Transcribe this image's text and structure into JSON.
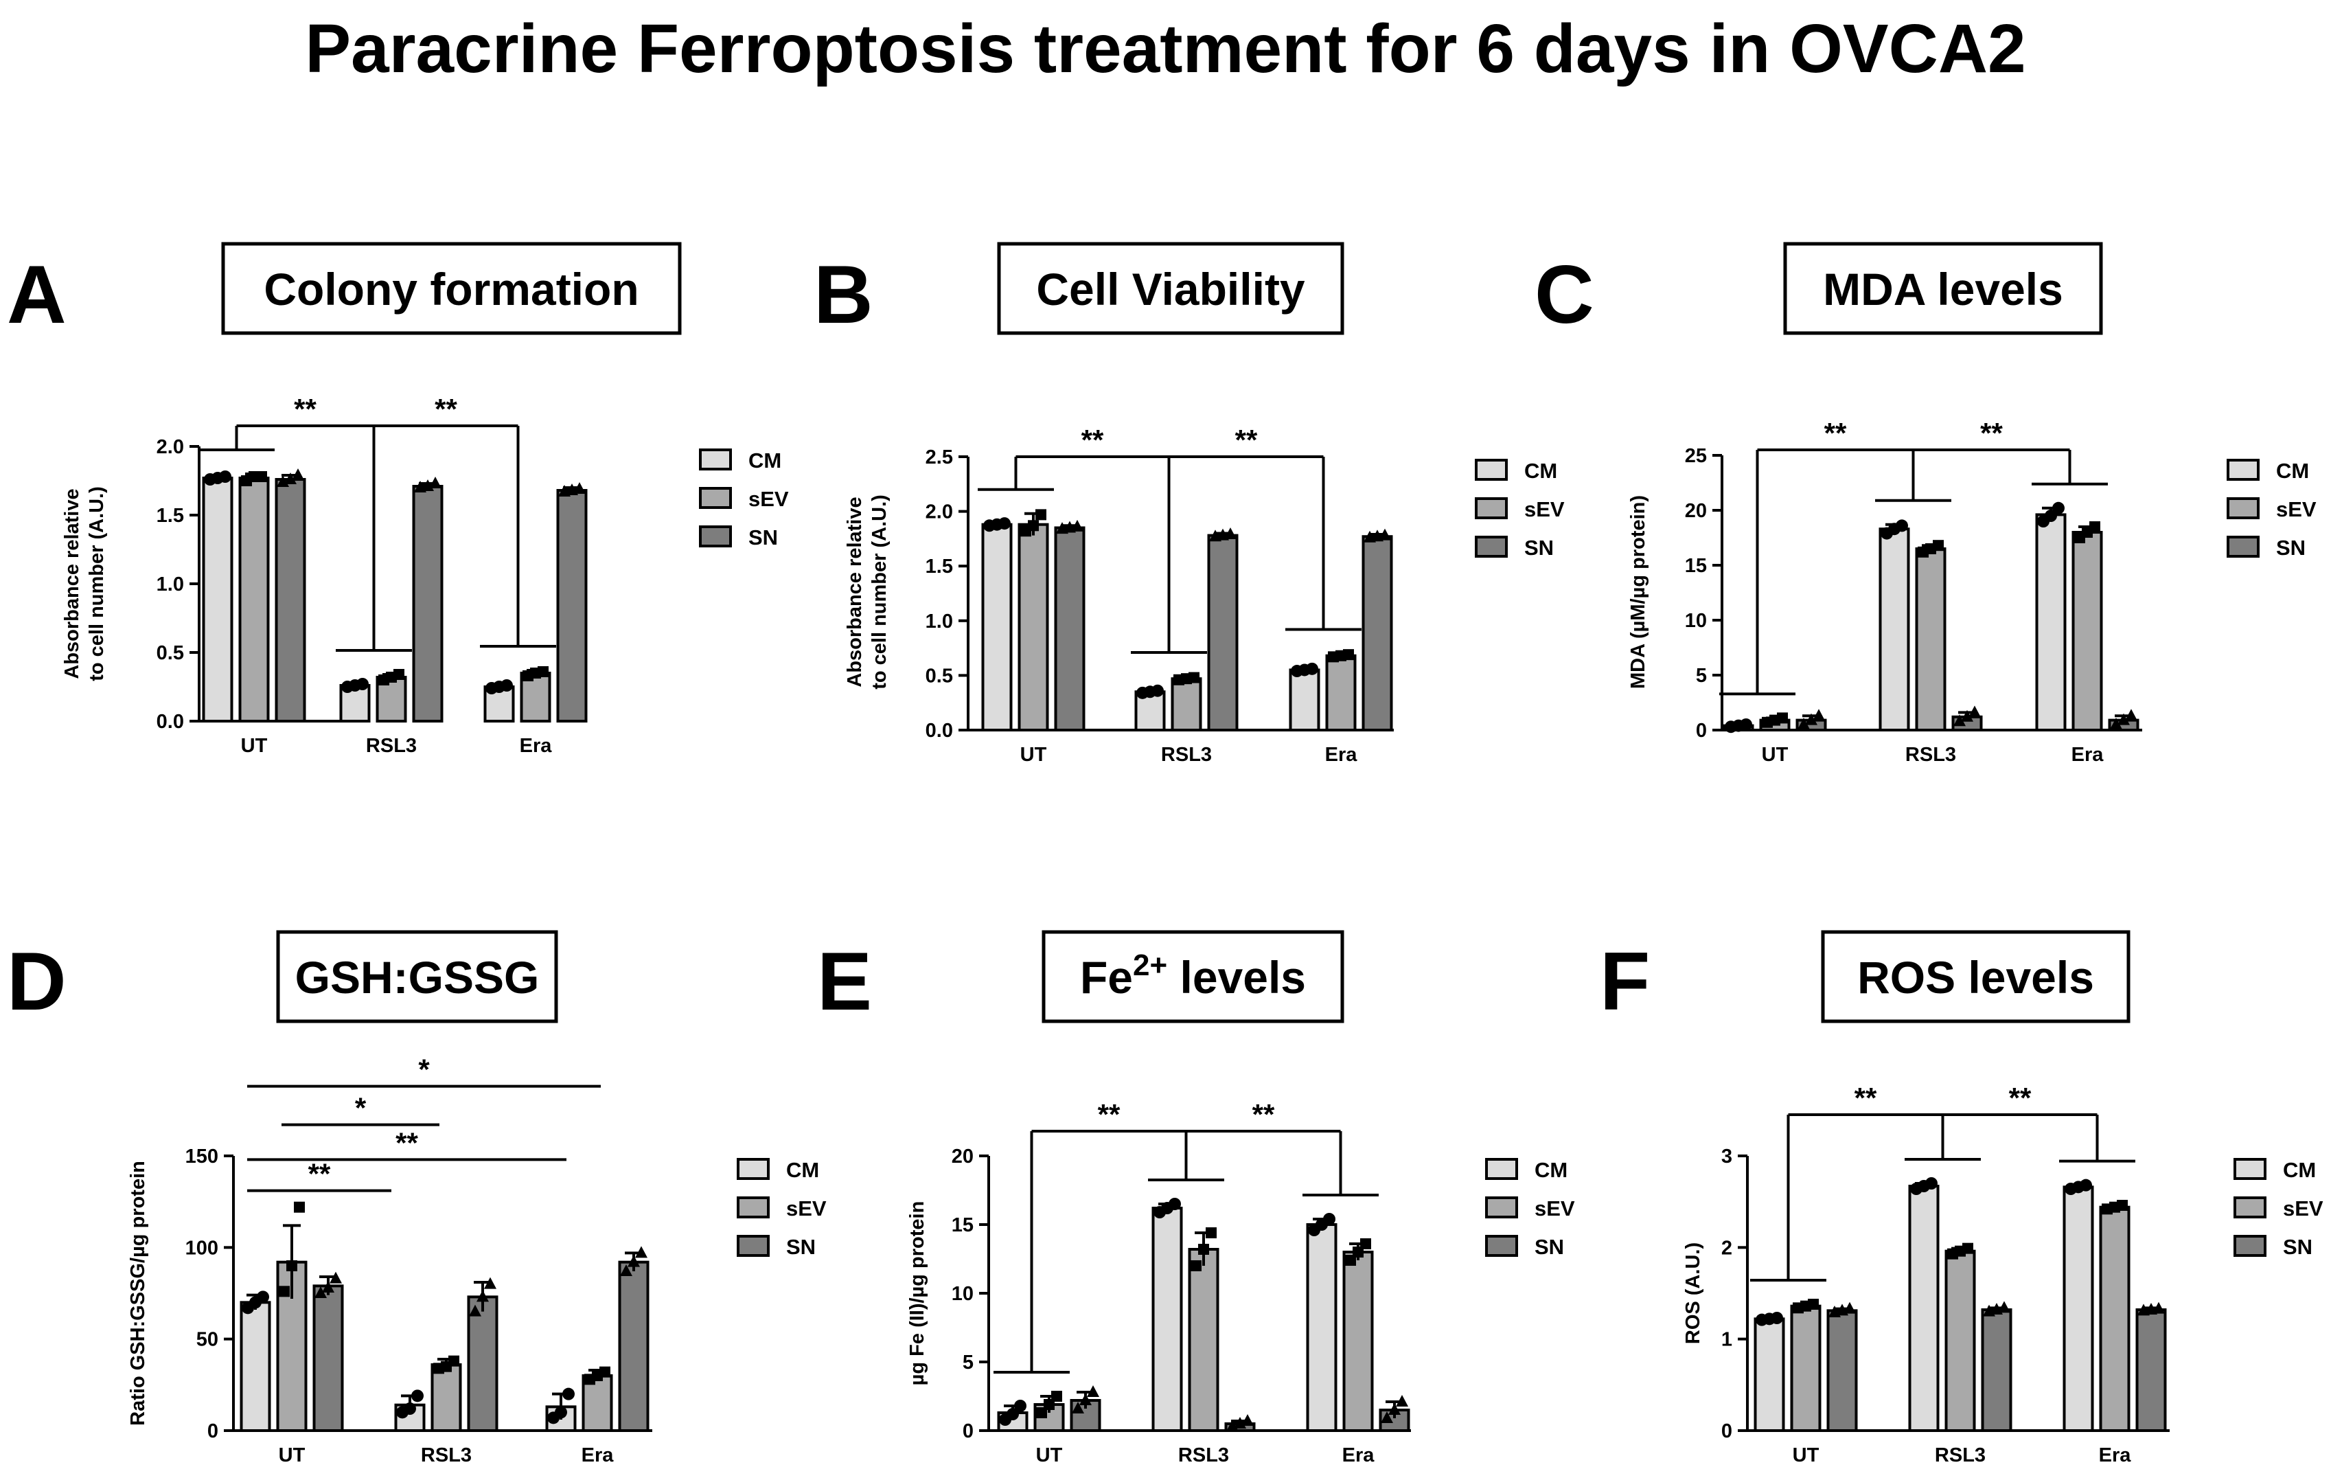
{
  "figure_title": "Paracrine Ferroptosis treatment for 6 days in OVCA2",
  "legend_labels": [
    "CM",
    "sEV",
    "SN"
  ],
  "colors": {
    "CM": "#dcdcdc",
    "sEV": "#a9a9a9",
    "SN": "#7d7d7d",
    "ink": "#000000"
  },
  "chart_data": [
    {
      "panel": "A",
      "type": "bar",
      "title": "Colony formation",
      "ylabel": "Absorbance relative\nto cell number (A.U.)",
      "categories": [
        "UT",
        "RSL3",
        "Era"
      ],
      "ylim": [
        0,
        2.0
      ],
      "yticks": [
        0.0,
        0.5,
        1.0,
        1.5,
        2.0
      ],
      "tick_decimals": 1,
      "series": [
        {
          "name": "CM",
          "values": [
            1.77,
            0.26,
            0.25
          ],
          "errors": [
            0.02,
            0.02,
            0.02
          ],
          "points": [
            [
              1.76,
              1.77,
              1.78
            ],
            [
              0.25,
              0.26,
              0.27
            ],
            [
              0.24,
              0.25,
              0.26
            ]
          ]
        },
        {
          "name": "sEV",
          "values": [
            1.77,
            0.32,
            0.35
          ],
          "errors": [
            0.03,
            0.02,
            0.02
          ],
          "points": [
            [
              1.75,
              1.78,
              1.78
            ],
            [
              0.3,
              0.32,
              0.34
            ],
            [
              0.33,
              0.35,
              0.36
            ]
          ]
        },
        {
          "name": "SN",
          "values": [
            1.76,
            1.71,
            1.68
          ],
          "errors": [
            0.03,
            0.02,
            0.02
          ],
          "points": [
            [
              1.74,
              1.76,
              1.79
            ],
            [
              1.7,
              1.71,
              1.73
            ],
            [
              1.67,
              1.68,
              1.69
            ]
          ]
        }
      ],
      "annotations": [
        {
          "label": "**",
          "kind": "group_compare",
          "bar_y": 2.15
        },
        {
          "label": "**",
          "kind": "group_compare",
          "bar_y": 2.15
        }
      ]
    },
    {
      "panel": "B",
      "type": "bar",
      "title": "Cell Viability",
      "ylabel": "Absorbance relative\nto cell number (A.U.)",
      "categories": [
        "UT",
        "RSL3",
        "Era"
      ],
      "ylim": [
        0,
        2.5
      ],
      "yticks": [
        0.0,
        0.5,
        1.0,
        1.5,
        2.0,
        2.5
      ],
      "tick_decimals": 1,
      "series": [
        {
          "name": "CM",
          "values": [
            1.88,
            0.35,
            0.55
          ],
          "errors": [
            0.02,
            0.02,
            0.02
          ],
          "points": [
            [
              1.87,
              1.88,
              1.89
            ],
            [
              0.34,
              0.35,
              0.36
            ],
            [
              0.54,
              0.55,
              0.56
            ]
          ]
        },
        {
          "name": "sEV",
          "values": [
            1.88,
            0.47,
            0.68
          ],
          "errors": [
            0.1,
            0.02,
            0.02
          ],
          "points": [
            [
              1.82,
              1.87,
              1.97
            ],
            [
              0.46,
              0.47,
              0.48
            ],
            [
              0.67,
              0.68,
              0.69
            ]
          ]
        },
        {
          "name": "SN",
          "values": [
            1.85,
            1.78,
            1.77
          ],
          "errors": [
            0.02,
            0.02,
            0.02
          ],
          "points": [
            [
              1.84,
              1.85,
              1.86
            ],
            [
              1.77,
              1.78,
              1.79
            ],
            [
              1.76,
              1.77,
              1.78
            ]
          ]
        }
      ],
      "annotations": [
        {
          "label": "**",
          "kind": "group_compare",
          "bar_y": 2.5
        },
        {
          "label": "**",
          "kind": "group_compare",
          "bar_y": 2.5
        }
      ]
    },
    {
      "panel": "C",
      "type": "bar",
      "title": "MDA levels",
      "ylabel": "MDA (µM/µg protein)",
      "categories": [
        "UT",
        "RSL3",
        "Era"
      ],
      "ylim": [
        0,
        25
      ],
      "yticks": [
        0,
        5,
        10,
        15,
        20,
        25
      ],
      "tick_decimals": 0,
      "series": [
        {
          "name": "CM",
          "values": [
            0.4,
            18.3,
            19.6
          ],
          "errors": [
            0.1,
            0.4,
            0.6
          ],
          "points": [
            [
              0.3,
              0.4,
              0.5
            ],
            [
              17.9,
              18.3,
              18.6
            ],
            [
              19.0,
              19.5,
              20.2
            ]
          ]
        },
        {
          "name": "sEV",
          "values": [
            0.9,
            16.5,
            18.0
          ],
          "errors": [
            0.2,
            0.3,
            0.5
          ],
          "points": [
            [
              0.7,
              0.9,
              1.1
            ],
            [
              16.2,
              16.5,
              16.8
            ],
            [
              17.5,
              18.0,
              18.5
            ]
          ]
        },
        {
          "name": "SN",
          "values": [
            0.9,
            1.2,
            0.9
          ],
          "errors": [
            0.4,
            0.4,
            0.4
          ],
          "points": [
            [
              0.5,
              0.9,
              1.3
            ],
            [
              0.8,
              1.2,
              1.6
            ],
            [
              0.5,
              0.9,
              1.3
            ]
          ]
        }
      ],
      "annotations": [
        {
          "label": "**",
          "kind": "group_compare",
          "bar_y": 25.5
        },
        {
          "label": "**",
          "kind": "group_compare",
          "bar_y": 25.5
        }
      ]
    },
    {
      "panel": "D",
      "type": "bar",
      "title": "GSH:GSSG",
      "ylabel": "Ratio GSH:GSSG/µg protein",
      "categories": [
        "UT",
        "RSL3",
        "Era"
      ],
      "ylim": [
        0,
        150
      ],
      "yticks": [
        0,
        50,
        100,
        150
      ],
      "tick_decimals": 0,
      "series": [
        {
          "name": "CM",
          "values": [
            70,
            14,
            13
          ],
          "errors": [
            4,
            5,
            7
          ],
          "points": [
            [
              67,
              70,
              73
            ],
            [
              10,
              12,
              19
            ],
            [
              7,
              10,
              20
            ]
          ]
        },
        {
          "name": "sEV",
          "values": [
            92,
            36,
            30
          ],
          "errors": [
            20,
            3,
            3
          ],
          "points": [
            [
              76,
              90,
              122
            ],
            [
              34,
              35,
              38
            ],
            [
              28,
              30,
              32
            ]
          ]
        },
        {
          "name": "SN",
          "values": [
            79,
            73,
            92
          ],
          "errors": [
            5,
            8,
            5
          ],
          "points": [
            [
              75,
              78,
              83
            ],
            [
              65,
              73,
              80
            ],
            [
              87,
              92,
              97
            ]
          ]
        }
      ],
      "annotations": [
        {
          "label": "*",
          "kind": "pair",
          "bar_y": 188
        },
        {
          "label": "*",
          "kind": "pair",
          "bar_y": 167
        },
        {
          "label": "**",
          "kind": "pair",
          "bar_y": 148
        },
        {
          "label": "**",
          "kind": "pair",
          "bar_y": 131
        }
      ]
    },
    {
      "panel": "E",
      "type": "bar",
      "title": "Fe2+ levels",
      "title_base": "Fe",
      "title_sup": "2+",
      "title_rest": " levels",
      "ylabel": "µg Fe (II)/µg protein",
      "categories": [
        "UT",
        "RSL3",
        "Era"
      ],
      "ylim": [
        0,
        20
      ],
      "yticks": [
        0,
        5,
        10,
        15,
        20
      ],
      "tick_decimals": 0,
      "series": [
        {
          "name": "CM",
          "values": [
            1.3,
            16.2,
            15.0
          ],
          "errors": [
            0.5,
            0.3,
            0.4
          ],
          "points": [
            [
              0.8,
              1.2,
              1.8
            ],
            [
              15.9,
              16.2,
              16.5
            ],
            [
              14.6,
              15.0,
              15.4
            ]
          ]
        },
        {
          "name": "sEV",
          "values": [
            1.9,
            13.2,
            13.0
          ],
          "errors": [
            0.6,
            1.2,
            0.6
          ],
          "points": [
            [
              1.3,
              1.9,
              2.5
            ],
            [
              12.0,
              13.2,
              14.4
            ],
            [
              12.4,
              13.0,
              13.6
            ]
          ]
        },
        {
          "name": "SN",
          "values": [
            2.2,
            0.5,
            1.5
          ],
          "errors": [
            0.6,
            0.2,
            0.6
          ],
          "points": [
            [
              1.6,
              2.2,
              2.8
            ],
            [
              0.3,
              0.5,
              0.7
            ],
            [
              0.9,
              1.5,
              2.1
            ]
          ]
        }
      ],
      "annotations": [
        {
          "label": "**",
          "kind": "group_compare",
          "bar_y": 21.8
        },
        {
          "label": "**",
          "kind": "group_compare",
          "bar_y": 21.8
        }
      ]
    },
    {
      "panel": "F",
      "type": "bar",
      "title": "ROS levels",
      "ylabel": "ROS (A.U.)",
      "categories": [
        "UT",
        "RSL3",
        "Era"
      ],
      "ylim": [
        0,
        3
      ],
      "yticks": [
        0,
        1,
        2,
        3
      ],
      "tick_decimals": 0,
      "series": [
        {
          "name": "CM",
          "values": [
            1.22,
            2.67,
            2.66
          ],
          "errors": [
            0.02,
            0.03,
            0.02
          ],
          "points": [
            [
              1.21,
              1.22,
              1.23
            ],
            [
              2.64,
              2.67,
              2.7
            ],
            [
              2.64,
              2.66,
              2.68
            ]
          ]
        },
        {
          "name": "sEV",
          "values": [
            1.36,
            1.96,
            2.44
          ],
          "errors": [
            0.02,
            0.03,
            0.02
          ],
          "points": [
            [
              1.34,
              1.36,
              1.38
            ],
            [
              1.93,
              1.96,
              1.99
            ],
            [
              2.42,
              2.44,
              2.46
            ]
          ]
        },
        {
          "name": "SN",
          "values": [
            1.31,
            1.32,
            1.32
          ],
          "errors": [
            0.02,
            0.02,
            0.02
          ],
          "points": [
            [
              1.29,
              1.31,
              1.33
            ],
            [
              1.3,
              1.32,
              1.34
            ],
            [
              1.31,
              1.32,
              1.33
            ]
          ]
        }
      ],
      "annotations": [
        {
          "label": "**",
          "kind": "group_compare",
          "bar_y": 3.45
        },
        {
          "label": "**",
          "kind": "group_compare",
          "bar_y": 3.45
        }
      ]
    }
  ]
}
